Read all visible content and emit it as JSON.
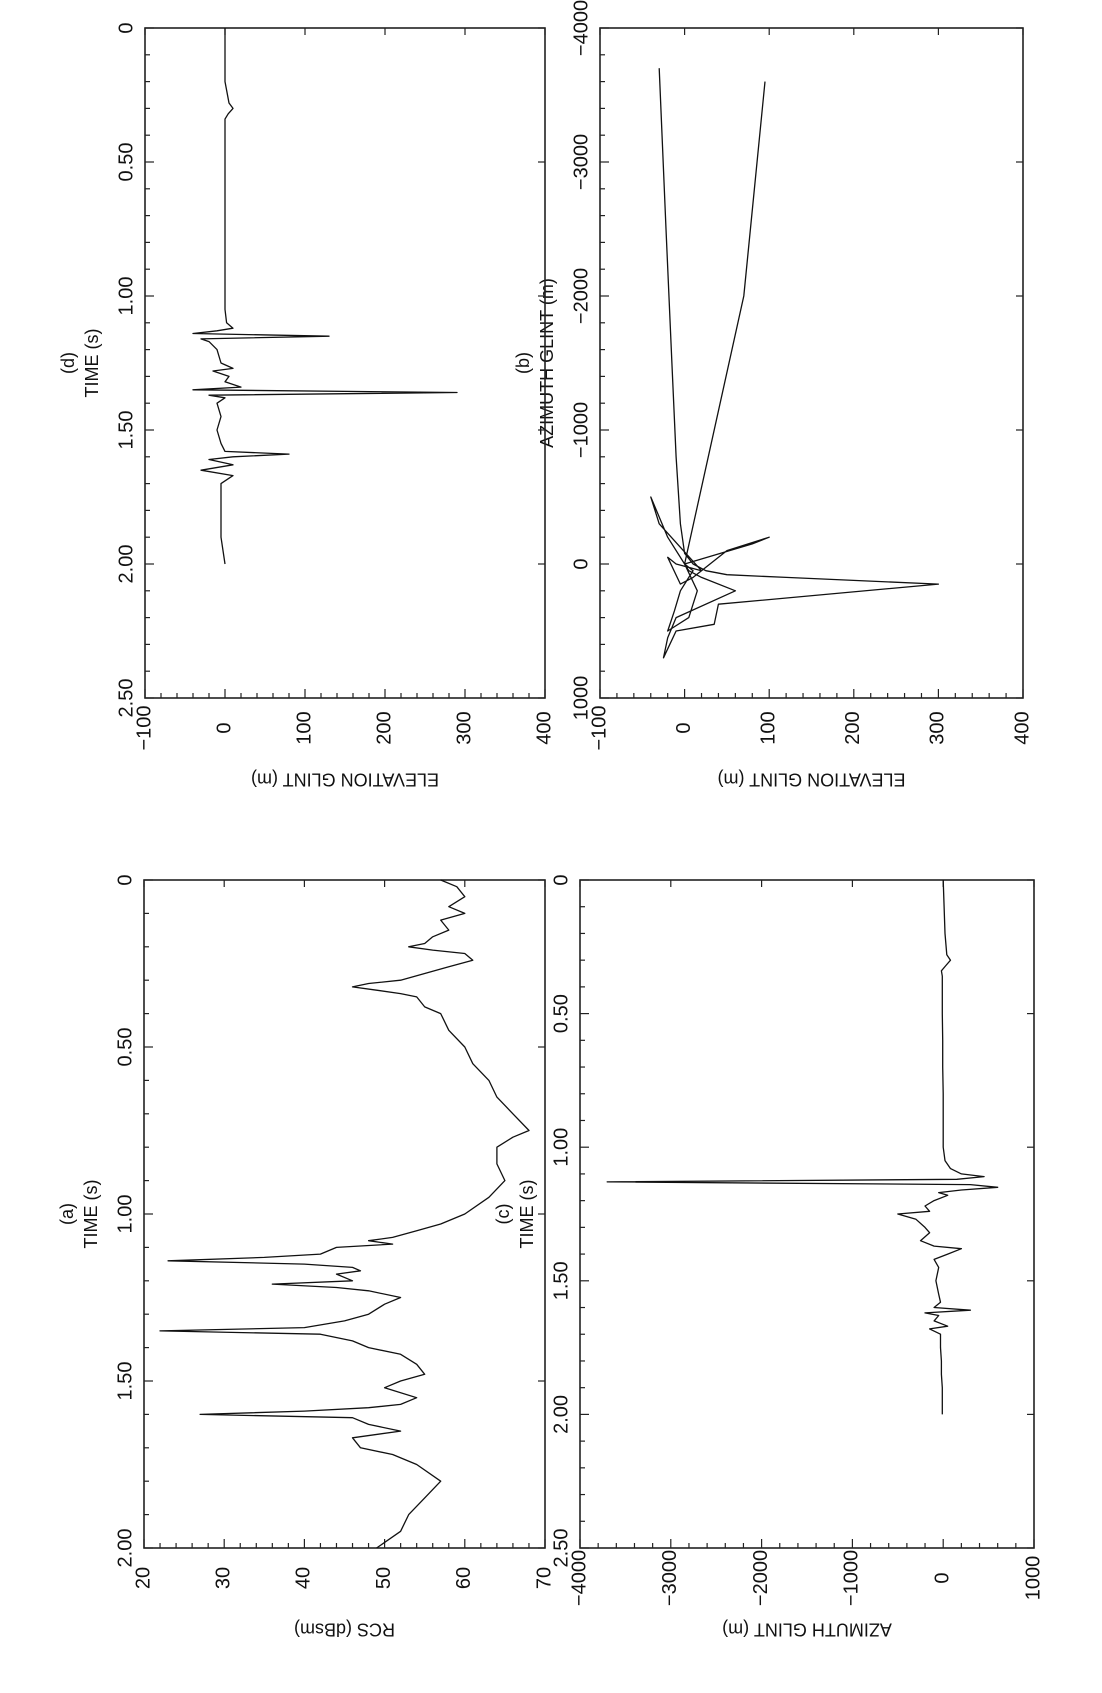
{
  "chart_data": [
    {
      "id": "a",
      "type": "line",
      "panel_label": "(a)",
      "xlabel": "TIME (s)",
      "ylabel": "RCS (dBsm)",
      "xlim": [
        0,
        2.0
      ],
      "ylim": [
        20,
        70
      ],
      "xticks": [
        0,
        0.5,
        1.0,
        1.5,
        2.0
      ],
      "xtick_labels": [
        "0",
        "0.50",
        "1.00",
        "1.50",
        "2.00"
      ],
      "yticks": [
        20,
        30,
        40,
        50,
        60,
        70
      ],
      "ytick_labels": [
        "20",
        "30",
        "40",
        "50",
        "60",
        "70"
      ],
      "series": [
        {
          "x": [
            0,
            0.02,
            0.05,
            0.08,
            0.1,
            0.12,
            0.15,
            0.17,
            0.19,
            0.2,
            0.21,
            0.22,
            0.24,
            0.26,
            0.28,
            0.3,
            0.31,
            0.32,
            0.33,
            0.34,
            0.35,
            0.38,
            0.4,
            0.45,
            0.5,
            0.55,
            0.6,
            0.65,
            0.7,
            0.75,
            0.77,
            0.8,
            0.85,
            0.9,
            0.95,
            1.0,
            1.03,
            1.05,
            1.07,
            1.08,
            1.09,
            1.1,
            1.12,
            1.13,
            1.14,
            1.15,
            1.16,
            1.17,
            1.18,
            1.2,
            1.21,
            1.22,
            1.23,
            1.25,
            1.27,
            1.3,
            1.32,
            1.34,
            1.35,
            1.36,
            1.38,
            1.4,
            1.42,
            1.45,
            1.48,
            1.5,
            1.52,
            1.55,
            1.57,
            1.58,
            1.59,
            1.6,
            1.61,
            1.63,
            1.65,
            1.67,
            1.7,
            1.72,
            1.75,
            1.8,
            1.85,
            1.9,
            1.95,
            2.0
          ],
          "y": [
            57,
            59,
            60,
            58,
            60,
            57,
            58,
            56,
            55,
            53,
            56,
            60,
            61,
            58,
            55,
            52,
            48,
            46,
            49,
            52,
            54,
            55,
            57,
            58,
            60,
            61,
            63,
            64,
            66,
            68,
            66,
            64,
            64,
            65,
            63,
            60,
            57,
            54,
            51,
            48,
            51,
            44,
            42,
            35,
            23,
            40,
            46,
            47,
            44,
            46,
            36,
            44,
            48,
            52,
            50,
            48,
            45,
            40,
            22,
            42,
            46,
            48,
            52,
            54,
            55,
            52,
            50,
            54,
            52,
            48,
            40,
            27,
            46,
            48,
            52,
            46,
            47,
            51,
            54,
            57,
            55,
            53,
            52,
            49
          ]
        }
      ]
    },
    {
      "id": "b",
      "type": "line",
      "panel_label": "(b)",
      "xlabel": "AZIMUTH GLINT (m)",
      "ylabel": "ELEVATION GLINT (m)",
      "xlim": [
        -4000,
        1000
      ],
      "ylim": [
        -100,
        400
      ],
      "xticks": [
        -4000,
        -3000,
        -2000,
        -1000,
        0,
        1000
      ],
      "xtick_labels": [
        "−4000",
        "−3000",
        "−2000",
        "−1000",
        "0",
        "1000"
      ],
      "yticks": [
        -100,
        0,
        100,
        200,
        300,
        400
      ],
      "ytick_labels": [
        "−100",
        "0",
        "100",
        "200",
        "300",
        "400"
      ],
      "series": [
        {
          "x": [
            -3700,
            -2500,
            -1500,
            -800,
            -300,
            -80,
            0,
            50,
            80,
            100,
            150,
            300,
            450,
            500,
            700,
            550,
            400,
            200,
            100,
            50,
            0,
            -150,
            -200,
            -100,
            0,
            100,
            150,
            -50,
            0,
            50,
            -300,
            -500,
            -200,
            0,
            50,
            100,
            200,
            350,
            500,
            400,
            200,
            0,
            -2000,
            -3600
          ],
          "y": [
            -30,
            -22,
            -15,
            -10,
            -5,
            0,
            10,
            25,
            50,
            120,
            300,
            40,
            35,
            -10,
            -25,
            -20,
            -10,
            60,
            20,
            5,
            0,
            80,
            100,
            50,
            30,
            10,
            -5,
            -20,
            -10,
            20,
            -30,
            -40,
            -20,
            0,
            10,
            5,
            -5,
            -12,
            -20,
            5,
            15,
            0,
            70,
            95
          ]
        }
      ]
    },
    {
      "id": "c",
      "type": "line",
      "panel_label": "(c)",
      "xlabel": "TIME (s)",
      "ylabel": "AZIMUTH GLINT (m)",
      "xlim": [
        0,
        2.5
      ],
      "ylim": [
        -4000,
        1000
      ],
      "xticks": [
        0,
        0.5,
        1.0,
        1.5,
        2.0,
        2.5
      ],
      "xtick_labels": [
        "0",
        "0.50",
        "1.00",
        "1.50",
        "2.00",
        "2.50"
      ],
      "yticks": [
        -4000,
        -3000,
        -2000,
        -1000,
        0,
        1000
      ],
      "ytick_labels": [
        "−4000",
        "−3000",
        "−2000",
        "−1000",
        "0",
        "1000"
      ],
      "series": [
        {
          "x": [
            0,
            0.1,
            0.2,
            0.28,
            0.3,
            0.32,
            0.34,
            0.36,
            0.4,
            0.5,
            0.6,
            0.7,
            0.8,
            0.9,
            1.0,
            1.05,
            1.08,
            1.1,
            1.11,
            1.12,
            1.13,
            1.14,
            1.15,
            1.16,
            1.17,
            1.18,
            1.2,
            1.22,
            1.24,
            1.25,
            1.27,
            1.3,
            1.32,
            1.35,
            1.37,
            1.38,
            1.4,
            1.42,
            1.45,
            1.5,
            1.55,
            1.58,
            1.6,
            1.61,
            1.62,
            1.63,
            1.65,
            1.67,
            1.68,
            1.7,
            1.75,
            1.8,
            1.85,
            1.9,
            1.95,
            2.0
          ],
          "y": [
            0,
            10,
            20,
            40,
            80,
            30,
            -20,
            -10,
            -10,
            -10,
            -5,
            -5,
            0,
            0,
            0,
            20,
            80,
            200,
            450,
            150,
            -3700,
            300,
            600,
            200,
            -50,
            50,
            -100,
            -200,
            -150,
            -500,
            -300,
            -200,
            -150,
            -250,
            -100,
            200,
            50,
            -100,
            -50,
            -80,
            -50,
            -30,
            -100,
            300,
            -200,
            -50,
            -100,
            50,
            -150,
            -30,
            -30,
            -20,
            -20,
            -10,
            -10,
            -10
          ]
        }
      ]
    },
    {
      "id": "d",
      "type": "line",
      "panel_label": "(d)",
      "xlabel": "TIME (s)",
      "ylabel": "ELEVATION GLINT (m)",
      "xlim": [
        0,
        2.5
      ],
      "ylim": [
        -100,
        400
      ],
      "xticks": [
        0,
        0.5,
        1.0,
        1.5,
        2.0,
        2.5
      ],
      "xtick_labels": [
        "0",
        "0.50",
        "1.00",
        "1.50",
        "2.00",
        "2.50"
      ],
      "yticks": [
        -100,
        0,
        100,
        200,
        300,
        400
      ],
      "ytick_labels": [
        "−100",
        "0",
        "100",
        "200",
        "300",
        "400"
      ],
      "series": [
        {
          "x": [
            0,
            0.1,
            0.2,
            0.28,
            0.3,
            0.32,
            0.34,
            0.4,
            0.5,
            0.6,
            0.7,
            0.8,
            0.9,
            1.0,
            1.05,
            1.1,
            1.12,
            1.13,
            1.14,
            1.15,
            1.16,
            1.17,
            1.2,
            1.25,
            1.27,
            1.28,
            1.3,
            1.32,
            1.34,
            1.35,
            1.36,
            1.37,
            1.38,
            1.4,
            1.45,
            1.5,
            1.55,
            1.58,
            1.59,
            1.6,
            1.61,
            1.63,
            1.65,
            1.67,
            1.7,
            1.75,
            1.8,
            1.9,
            2.0
          ],
          "y": [
            0,
            0,
            0,
            5,
            10,
            4,
            0,
            0,
            0,
            0,
            0,
            0,
            0,
            0,
            0,
            2,
            10,
            -10,
            -40,
            130,
            -30,
            -20,
            -10,
            -5,
            10,
            -15,
            5,
            0,
            20,
            -40,
            290,
            -20,
            0,
            -10,
            -5,
            -10,
            -5,
            0,
            80,
            10,
            -20,
            10,
            -30,
            10,
            -5,
            -5,
            -5,
            -5,
            0
          ]
        }
      ]
    }
  ]
}
